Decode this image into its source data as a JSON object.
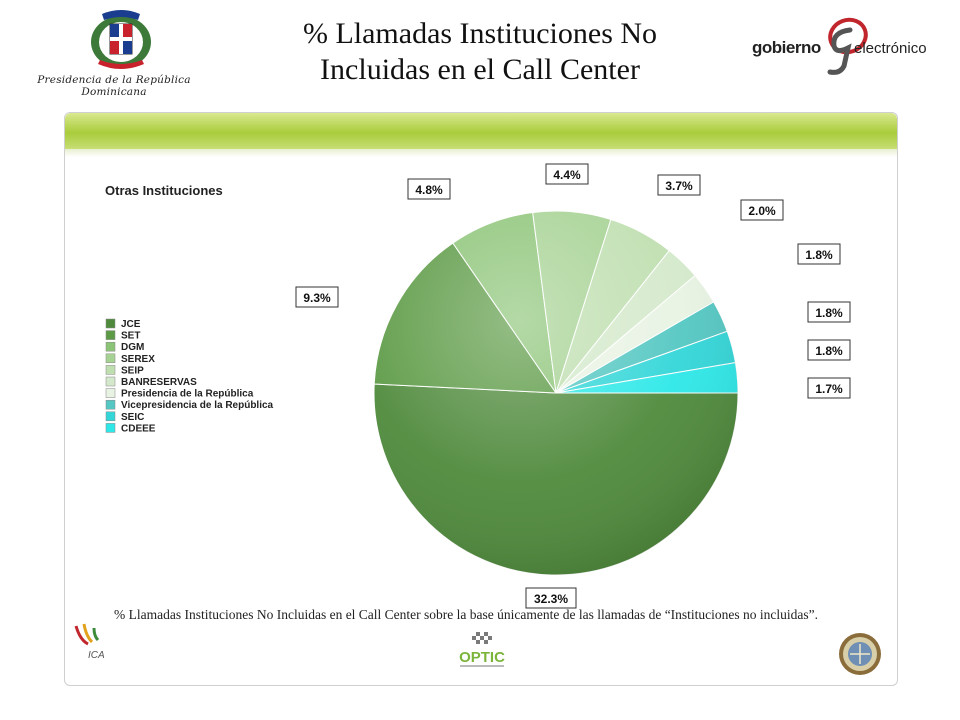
{
  "header": {
    "title_line1": "% Llamadas Instituciones No",
    "title_line2": "Incluidas en el Call Center",
    "presidencia": "Presidencia de la República Dominicana",
    "logo_left": "gobierno",
    "logo_right": "electrónico"
  },
  "chart_data": {
    "type": "pie",
    "title": "Otras Instituciones",
    "legend_placement": "left",
    "categories": [
      "JCE",
      "SET",
      "DGM",
      "SEREX",
      "SEIP",
      "BANRESERVAS",
      "Presidencia de la República",
      "Vicepresidencia de la República",
      "SEIC",
      "CDEEE"
    ],
    "values": [
      32.3,
      9.3,
      4.8,
      4.4,
      3.7,
      2.0,
      1.8,
      1.8,
      1.8,
      1.7
    ],
    "labels": [
      "32.3%",
      "9.3%",
      "4.8%",
      "4.4%",
      "3.7%",
      "2.0%",
      "1.8%",
      "1.8%",
      "1.8%",
      "1.7%"
    ],
    "colors": [
      "#4f8a3c",
      "#5c9a45",
      "#8cc477",
      "#a6d293",
      "#bfdfb0",
      "#d4e9cb",
      "#e8f3e3",
      "#54c7c2",
      "#33d6d8",
      "#2ee8e8"
    ]
  },
  "note": "% Llamadas Instituciones No Incluidas en el Call Center sobre la base únicamente de las llamadas de “Instituciones no incluidas”.",
  "logos": {
    "ica": "ICA",
    "optic": "OPTIC"
  }
}
